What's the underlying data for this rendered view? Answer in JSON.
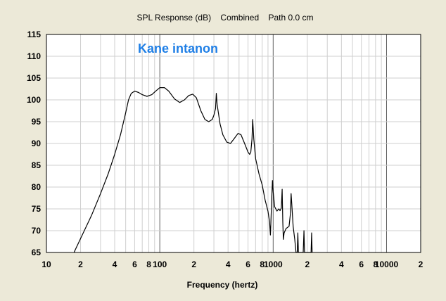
{
  "chart_data": {
    "type": "line",
    "title": "SPL Response (dB)    Combined    Path 0.0 cm",
    "xlabel": "Frequency (hertz)",
    "ylabel": "",
    "xscale": "log",
    "xlim": [
      10,
      20000
    ],
    "ylim": [
      65,
      115
    ],
    "grid": true,
    "annotation": "Kane intanon",
    "y_ticks": [
      "115",
      "110",
      "105",
      "100",
      "95",
      "90",
      "85",
      "80",
      "75",
      "70",
      "65"
    ],
    "x_ticks": [
      {
        "v": 10,
        "label": "10"
      },
      {
        "v": 20,
        "label": "2"
      },
      {
        "v": 40,
        "label": "4"
      },
      {
        "v": 60,
        "label": "6"
      },
      {
        "v": 80,
        "label": "8"
      },
      {
        "v": 100,
        "label": "100"
      },
      {
        "v": 200,
        "label": "2"
      },
      {
        "v": 400,
        "label": "4"
      },
      {
        "v": 600,
        "label": "6"
      },
      {
        "v": 800,
        "label": "8"
      },
      {
        "v": 1000,
        "label": "1000"
      },
      {
        "v": 2000,
        "label": "2"
      },
      {
        "v": 4000,
        "label": "4"
      },
      {
        "v": 6000,
        "label": "6"
      },
      {
        "v": 8000,
        "label": "8"
      },
      {
        "v": 10000,
        "label": "10000"
      },
      {
        "v": 20000,
        "label": "2"
      }
    ],
    "series": [
      {
        "color": "#000000",
        "points": [
          [
            17.5,
            65
          ],
          [
            20,
            68.2
          ],
          [
            25,
            73.5
          ],
          [
            30,
            78.5
          ],
          [
            35,
            83
          ],
          [
            40,
            87.5
          ],
          [
            45,
            92
          ],
          [
            50,
            97
          ],
          [
            53,
            100
          ],
          [
            56,
            101.5
          ],
          [
            60,
            102
          ],
          [
            65,
            101.7
          ],
          [
            70,
            101.2
          ],
          [
            77,
            100.8
          ],
          [
            85,
            101.2
          ],
          [
            92,
            102
          ],
          [
            100,
            102.8
          ],
          [
            110,
            102.8
          ],
          [
            120,
            102
          ],
          [
            135,
            100.2
          ],
          [
            150,
            99.4
          ],
          [
            165,
            100
          ],
          [
            180,
            101
          ],
          [
            195,
            101.3
          ],
          [
            210,
            100.5
          ],
          [
            230,
            97.5
          ],
          [
            250,
            95.5
          ],
          [
            270,
            95
          ],
          [
            290,
            95.5
          ],
          [
            300,
            96.5
          ],
          [
            310,
            98
          ],
          [
            315,
            101.5
          ],
          [
            320,
            99
          ],
          [
            340,
            94.5
          ],
          [
            360,
            92
          ],
          [
            390,
            90.3
          ],
          [
            420,
            90
          ],
          [
            450,
            91
          ],
          [
            490,
            92.3
          ],
          [
            520,
            92
          ],
          [
            560,
            90
          ],
          [
            600,
            88
          ],
          [
            620,
            87.5
          ],
          [
            635,
            88
          ],
          [
            650,
            91
          ],
          [
            660,
            95.5
          ],
          [
            675,
            91
          ],
          [
            700,
            86.5
          ],
          [
            750,
            83
          ],
          [
            800,
            80.5
          ],
          [
            850,
            77
          ],
          [
            900,
            74.5
          ],
          [
            930,
            72
          ],
          [
            945,
            69
          ],
          [
            955,
            72
          ],
          [
            970,
            77
          ],
          [
            985,
            81.5
          ],
          [
            1000,
            79
          ],
          [
            1030,
            75.5
          ],
          [
            1080,
            74.5
          ],
          [
            1120,
            75
          ],
          [
            1150,
            74.6
          ],
          [
            1180,
            75.2
          ],
          [
            1200,
            79.5
          ],
          [
            1215,
            72
          ],
          [
            1230,
            68
          ],
          [
            1250,
            69.5
          ],
          [
            1300,
            70.5
          ],
          [
            1380,
            71
          ],
          [
            1420,
            74
          ],
          [
            1440,
            78.5
          ],
          [
            1460,
            76
          ],
          [
            1500,
            71
          ],
          [
            1550,
            68
          ],
          [
            1590,
            65
          ],
          [
            1630,
            65
          ],
          [
            1650,
            69.5
          ],
          [
            1670,
            65
          ],
          [
            1840,
            65
          ],
          [
            1870,
            70
          ],
          [
            1890,
            65
          ],
          [
            2160,
            65
          ],
          [
            2185,
            69.5
          ],
          [
            2205,
            65
          ]
        ]
      }
    ]
  }
}
